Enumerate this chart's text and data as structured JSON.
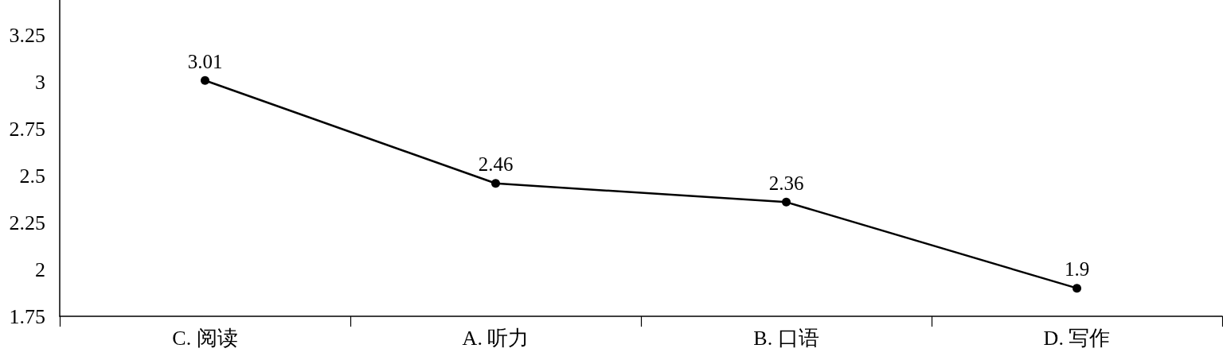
{
  "chart_data": {
    "type": "line",
    "categories": [
      "C. 阅读",
      "A. 听力",
      "B. 口语",
      "D. 写作"
    ],
    "values": [
      3.01,
      2.46,
      2.36,
      1.9
    ],
    "color": "#000000",
    "ylim": [
      1.75,
      3.44
    ],
    "yticks": [
      1.75,
      2,
      2.25,
      2.5,
      2.75,
      3,
      3.25
    ],
    "data_labels": true,
    "marker": "circle",
    "line_style": "solid"
  }
}
